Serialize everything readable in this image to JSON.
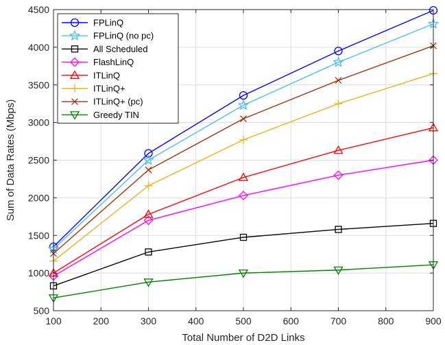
{
  "chart_data": {
    "type": "line",
    "title": "",
    "xlabel": "Total Number of D2D Links",
    "ylabel": "Sum of Data Rates (Mbps)",
    "xlim": [
      100,
      900
    ],
    "ylim": [
      500,
      4500
    ],
    "x_ticks": [
      100,
      200,
      300,
      400,
      500,
      600,
      700,
      800,
      900
    ],
    "y_ticks": [
      500,
      1000,
      1500,
      2000,
      2500,
      3000,
      3500,
      4000,
      4500
    ],
    "grid": true,
    "legend_position": "top-left",
    "x": [
      100,
      300,
      500,
      700,
      900
    ],
    "series": [
      {
        "name": "FPLinQ",
        "color": "#0000ff",
        "marker": "circle",
        "values": [
          1350,
          2590,
          3360,
          3950,
          4490
        ]
      },
      {
        "name": "FPLinQ (no pc)",
        "color": "#4dbeee",
        "marker": "star",
        "values": [
          1320,
          2500,
          3230,
          3800,
          4310
        ]
      },
      {
        "name": "All Scheduled",
        "color": "#000000",
        "marker": "square",
        "values": [
          830,
          1280,
          1475,
          1580,
          1660
        ]
      },
      {
        "name": "FlashLinQ",
        "color": "#ff00ff",
        "marker": "diamond",
        "values": [
          960,
          1700,
          2030,
          2300,
          2500
        ]
      },
      {
        "name": "ITLinQ",
        "color": "#ff0000",
        "marker": "triangle-up",
        "values": [
          1000,
          1780,
          2270,
          2630,
          2930
        ]
      },
      {
        "name": "ITLinQ+",
        "color": "#edb120",
        "marker": "plus",
        "values": [
          1160,
          2160,
          2770,
          3250,
          3650
        ]
      },
      {
        "name": "ITLinQ+ (pc)",
        "color": "#a2340f",
        "marker": "x",
        "values": [
          1260,
          2370,
          3050,
          3560,
          4020
        ]
      },
      {
        "name": "Greedy TIN",
        "color": "#008000",
        "marker": "triangle-down",
        "values": [
          670,
          880,
          1000,
          1040,
          1110
        ]
      }
    ]
  }
}
